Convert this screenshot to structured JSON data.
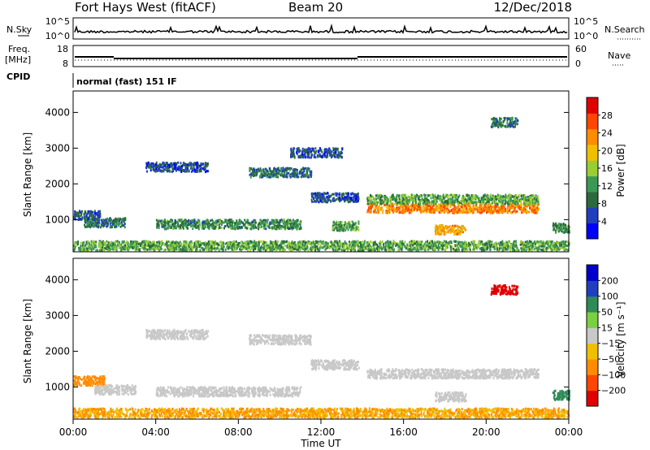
{
  "header": {
    "station": "Fort Hays West (fitACF)",
    "beam": "Beam 20",
    "date": "12/Dec/2018"
  },
  "status_panels": {
    "noise_label_left": "N.Sky",
    "noise_label_right": "N.Search",
    "noise_ticks": [
      "10^5",
      "10^0"
    ],
    "freq_label_line1": "Freq.",
    "freq_label_line2": "[MHz]",
    "freq_ticks": [
      "18",
      "8"
    ],
    "nave_label": "Nave",
    "nave_ticks": [
      "60",
      "0"
    ],
    "cpid_label": "CPID",
    "cpid_text": "normal (fast) 151 IF"
  },
  "chart_data": [
    {
      "type": "heatmap",
      "name": "power",
      "ylabel": "Slant Range [km]",
      "y_ticks": [
        "4000",
        "3000",
        "2000",
        "1000"
      ],
      "colorbar_label": "Power [dB]",
      "colorbar_ticks": [
        "28",
        "24",
        "20",
        "16",
        "12",
        "8",
        "4"
      ],
      "colors": [
        "#0000ff",
        "#1f3fbf",
        "#2a6a3c",
        "#3a9a55",
        "#9acd32",
        "#f0c000",
        "#ff8c00",
        "#ff4500",
        "#e00000"
      ],
      "scatter_bands_km": [
        {
          "t0": 0.0,
          "t1": 1.3,
          "r": 1150,
          "value": 8
        },
        {
          "t0": 0.5,
          "t1": 2.5,
          "r": 950,
          "value": 10
        },
        {
          "t0": 3.5,
          "t1": 6.5,
          "r": 2500,
          "value": 8
        },
        {
          "t0": 4.0,
          "t1": 11.0,
          "r": 900,
          "value": 12
        },
        {
          "t0": 8.5,
          "t1": 11.5,
          "r": 2350,
          "value": 10
        },
        {
          "t0": 10.5,
          "t1": 13.0,
          "r": 2900,
          "value": 8
        },
        {
          "t0": 11.5,
          "t1": 13.8,
          "r": 1650,
          "value": 8
        },
        {
          "t0": 12.5,
          "t1": 13.8,
          "r": 850,
          "value": 14
        },
        {
          "t0": 14.2,
          "t1": 22.5,
          "r": 1350,
          "value": 24
        },
        {
          "t0": 14.2,
          "t1": 22.5,
          "r": 1600,
          "value": 14
        },
        {
          "t0": 17.5,
          "t1": 19.0,
          "r": 750,
          "value": 22
        },
        {
          "t0": 20.2,
          "t1": 21.5,
          "r": 3750,
          "value": 10
        },
        {
          "t0": 0.0,
          "t1": 24.0,
          "r": 300,
          "value": 14
        },
        {
          "t0": 23.2,
          "t1": 24.0,
          "r": 800,
          "value": 12
        }
      ]
    },
    {
      "type": "heatmap",
      "name": "velocity",
      "xlabel": "Time UT",
      "x_ticks": [
        "00:00",
        "04:00",
        "08:00",
        "12:00",
        "16:00",
        "20:00",
        "00:00"
      ],
      "ylabel": "Slant Range [km]",
      "y_ticks": [
        "4000",
        "3000",
        "2000",
        "1000"
      ],
      "colorbar_label": "Velocity [m s⁻¹]",
      "colorbar_ticks": [
        "200",
        "100",
        "50",
        "15",
        "−15",
        "−50",
        "−100",
        "−200"
      ],
      "colors": [
        "#e00000",
        "#ff4500",
        "#ff8c00",
        "#f0c000",
        "#c8c8c8",
        "#7ad040",
        "#2e8b57",
        "#1f3fbf",
        "#0000cd"
      ],
      "scatter_bands_km": [
        {
          "t0": 0.0,
          "t1": 1.5,
          "r": 1200,
          "value": -40
        },
        {
          "t0": 1.0,
          "t1": 3.0,
          "r": 950,
          "value": 0
        },
        {
          "t0": 3.5,
          "t1": 6.5,
          "r": 2500,
          "value": 0
        },
        {
          "t0": 4.0,
          "t1": 11.0,
          "r": 900,
          "value": 0
        },
        {
          "t0": 8.5,
          "t1": 11.5,
          "r": 2350,
          "value": 0
        },
        {
          "t0": 11.5,
          "t1": 13.8,
          "r": 1650,
          "value": 0
        },
        {
          "t0": 14.2,
          "t1": 22.5,
          "r": 1400,
          "value": 0
        },
        {
          "t0": 17.5,
          "t1": 19.0,
          "r": 750,
          "value": 0
        },
        {
          "t0": 20.2,
          "t1": 21.5,
          "r": 3750,
          "value": -180
        },
        {
          "t0": 0.0,
          "t1": 24.0,
          "r": 300,
          "value": -30
        },
        {
          "t0": 23.2,
          "t1": 24.0,
          "r": 800,
          "value": 40
        }
      ]
    }
  ]
}
